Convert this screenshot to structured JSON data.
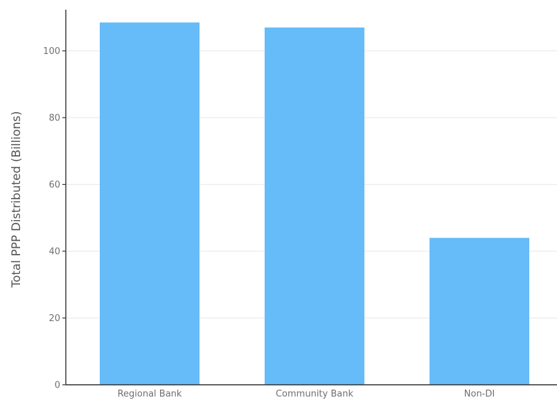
{
  "chart_data": {
    "type": "bar",
    "title": "",
    "xlabel": "",
    "ylabel": "Total PPP Distributed (Billions)",
    "categories": [
      "Regional Bank",
      "Community Bank",
      "Non-DI"
    ],
    "values": [
      108.5,
      107.0,
      44.0
    ],
    "ylim": [
      0,
      112
    ],
    "yticks": [
      0,
      20,
      40,
      60,
      80,
      100
    ],
    "grid": true,
    "colors": {
      "bar": "#66bbf9",
      "grid": "#ebebeb",
      "axis": "#2f2f2f"
    }
  }
}
